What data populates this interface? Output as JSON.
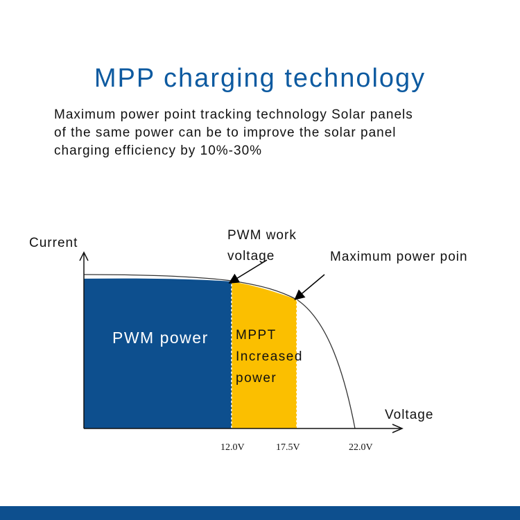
{
  "header": {
    "title": "MPP charging technology",
    "description_lines": [
      "Maximum power point tracking technology Solar panels",
      "of the same power can be to improve the solar panel",
      "charging efficiency by 10%-30%"
    ]
  },
  "diagram": {
    "y_axis_label": "Current",
    "x_axis_label": "Voltage",
    "pwm_label_lines": [
      "PWM work",
      "voltage"
    ],
    "mpp_label": "Maximum power poin",
    "pwm_region_label": "PWM power",
    "mppt_region_lines": [
      "MPPT",
      "Increased",
      "power"
    ],
    "ticks": [
      "12.0V",
      "17.5V",
      "22.0V"
    ],
    "colors": {
      "pwm_region": "#0d4f8e",
      "mppt_region": "#fbbf00",
      "title": "#0d5aa0"
    }
  }
}
